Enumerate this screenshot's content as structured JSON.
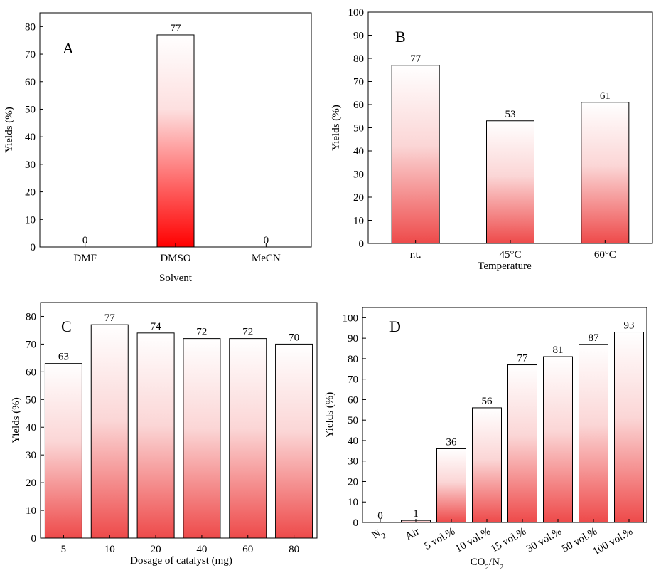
{
  "chart_data": [
    {
      "type": "bar",
      "panel_label": "A",
      "categories": [
        "DMF",
        "DMSO",
        "MeCN"
      ],
      "values": [
        0,
        77,
        0
      ],
      "data_labels": [
        "0",
        "77",
        "0"
      ],
      "xlabel": "Solvent",
      "ylabel": "Yields (%)",
      "ylim": [
        0,
        85
      ],
      "yticks": [
        0,
        10,
        20,
        30,
        40,
        50,
        60,
        70,
        80
      ],
      "grid": false
    },
    {
      "type": "bar",
      "panel_label": "B",
      "categories": [
        "r.t.",
        "45°C",
        "60°C"
      ],
      "values": [
        77,
        53,
        61
      ],
      "data_labels": [
        "77",
        "53",
        "61"
      ],
      "xlabel": "Temperature",
      "ylabel": "Yields (%)",
      "ylim": [
        0,
        100
      ],
      "yticks": [
        0,
        10,
        20,
        30,
        40,
        50,
        60,
        70,
        80,
        90,
        100
      ],
      "grid": false
    },
    {
      "type": "bar",
      "panel_label": "C",
      "categories": [
        "5",
        "10",
        "20",
        "40",
        "60",
        "80"
      ],
      "values": [
        63,
        77,
        74,
        72,
        72,
        70
      ],
      "data_labels": [
        "63",
        "77",
        "74",
        "72",
        "72",
        "70"
      ],
      "xlabel": "Dosage of catalyst (mg)",
      "ylabel": "Yields (%)",
      "ylim": [
        0,
        85
      ],
      "yticks": [
        0,
        10,
        20,
        30,
        40,
        50,
        60,
        70,
        80
      ],
      "grid": false
    },
    {
      "type": "bar",
      "panel_label": "D",
      "categories": [
        "N2",
        "Air",
        "5 vol.%",
        "10 vol.%",
        "15 vol.%",
        "30 vol.%",
        "50 vol.%",
        "100 vol.%"
      ],
      "values": [
        0,
        1,
        36,
        56,
        77,
        81,
        87,
        93
      ],
      "data_labels": [
        "0",
        "1",
        "36",
        "56",
        "77",
        "81",
        "87",
        "93"
      ],
      "xlabel": "CO2/N2",
      "ylabel": "Yields (%)",
      "ylim": [
        0,
        105
      ],
      "yticks": [
        0,
        10,
        20,
        30,
        40,
        50,
        60,
        70,
        80,
        90,
        100
      ],
      "grid": false
    }
  ],
  "colors": {
    "bar_top": "#ffffff",
    "bar_bottom_light": "#ee4444",
    "bar_bottom_strong": "#ff0000",
    "outline": "#000000"
  }
}
